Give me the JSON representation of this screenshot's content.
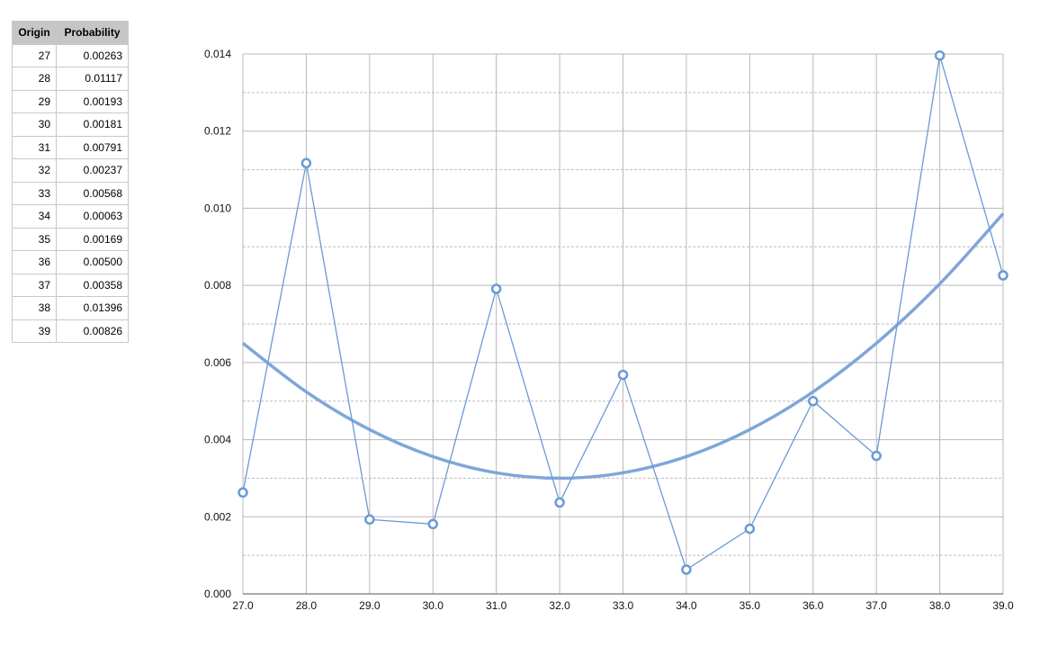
{
  "table": {
    "header": [
      "Origin",
      "Probability"
    ],
    "rows": [
      [
        "27",
        "0.00263"
      ],
      [
        "28",
        "0.01117"
      ],
      [
        "29",
        "0.00193"
      ],
      [
        "30",
        "0.00181"
      ],
      [
        "31",
        "0.00791"
      ],
      [
        "32",
        "0.00237"
      ],
      [
        "33",
        "0.00568"
      ],
      [
        "34",
        "0.00063"
      ],
      [
        "35",
        "0.00169"
      ],
      [
        "36",
        "0.00500"
      ],
      [
        "37",
        "0.00358"
      ],
      [
        "38",
        "0.01396"
      ],
      [
        "39",
        "0.00826"
      ]
    ]
  },
  "chart_data": {
    "type": "line",
    "x": [
      27,
      28,
      29,
      30,
      31,
      32,
      33,
      34,
      35,
      36,
      37,
      38,
      39
    ],
    "series": [
      {
        "color": "#6a9ad6",
        "values": [
          0.00263,
          0.01117,
          0.00193,
          0.00181,
          0.00791,
          0.00237,
          0.00568,
          0.00063,
          0.00169,
          0.005,
          0.00358,
          0.01396,
          0.00826
        ]
      }
    ],
    "trendline": {
      "color": "#7fa6d9",
      "values": [
        0.0065,
        0.00524,
        0.00426,
        0.00356,
        0.00314,
        0.003,
        0.00314,
        0.00356,
        0.00426,
        0.00524,
        0.0065,
        0.00804,
        0.00986
      ]
    },
    "xlim": [
      27,
      39
    ],
    "xticks": [
      {
        "value": 27,
        "label": "27.0"
      },
      {
        "value": 28,
        "label": "28.0"
      },
      {
        "value": 29,
        "label": "29.0"
      },
      {
        "value": 30,
        "label": "30.0"
      },
      {
        "value": 31,
        "label": "31.0"
      },
      {
        "value": 32,
        "label": "32.0"
      },
      {
        "value": 33,
        "label": "33.0"
      },
      {
        "value": 34,
        "label": "34.0"
      },
      {
        "value": 35,
        "label": "35.0"
      },
      {
        "value": 36,
        "label": "36.0"
      },
      {
        "value": 37,
        "label": "37.0"
      },
      {
        "value": 38,
        "label": "38.0"
      },
      {
        "value": 39,
        "label": "39.0"
      }
    ],
    "ylim": [
      0,
      0.014
    ],
    "yticks": [
      {
        "value": 0,
        "label": "0.000"
      },
      {
        "value": 0.002,
        "label": "0.002"
      },
      {
        "value": 0.004,
        "label": "0.004"
      },
      {
        "value": 0.006,
        "label": "0.006"
      },
      {
        "value": 0.008,
        "label": "0.008"
      },
      {
        "value": 0.01,
        "label": "0.010"
      },
      {
        "value": 0.012,
        "label": "0.012"
      },
      {
        "value": 0.014,
        "label": "0.014"
      }
    ],
    "grid": true,
    "minor_grid": true
  }
}
